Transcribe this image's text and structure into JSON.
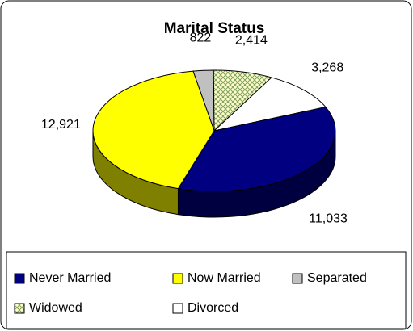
{
  "chart_data": {
    "type": "pie",
    "title": "Marital Status",
    "categories": [
      "Never Married",
      "Now Married",
      "Separated",
      "Widowed",
      "Divorced"
    ],
    "values": [
      11033,
      12921,
      822,
      2414,
      3268
    ],
    "value_labels": [
      "11,033",
      "12,921",
      "822",
      "2,414",
      "3,268"
    ],
    "colors": [
      "#000080",
      "#ffff00",
      "#c0c0c0",
      "#ffffcc",
      "#ffffff"
    ],
    "legend": "bottom"
  }
}
